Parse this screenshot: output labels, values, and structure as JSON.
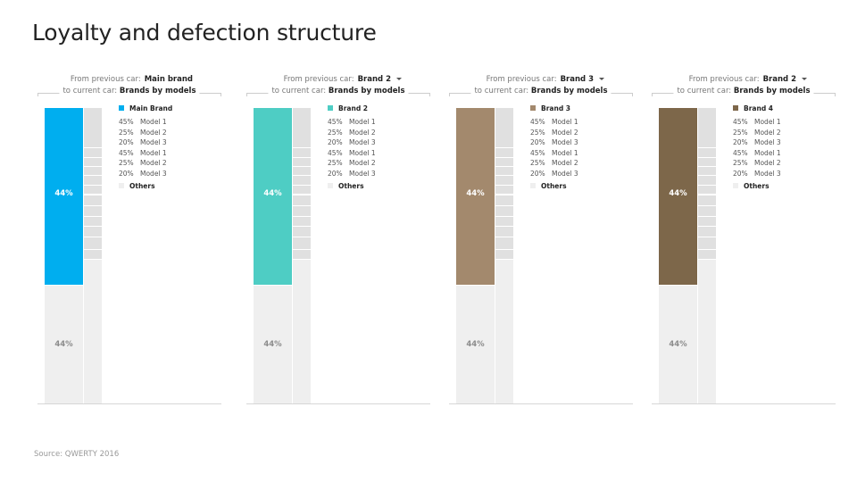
{
  "page": {
    "title": "Loyalty and defection structure",
    "source": "Source: QWERTY 2016"
  },
  "chart_data": [
    {
      "type": "bar",
      "header": {
        "from_label": "From previous car:",
        "from_value": "Main brand",
        "has_dropdown": false,
        "to_label": "to current car:",
        "to_value": "Brands by models"
      },
      "color": "#00aeef",
      "stack": [
        {
          "name": "Main Brand",
          "value": 44,
          "label": "44%"
        },
        {
          "name": "Others",
          "value": 44,
          "label": "44%"
        }
      ],
      "legend": {
        "brand": "Main Brand",
        "rows": [
          {
            "pct": "45%",
            "model": "Model 1"
          },
          {
            "pct": "25%",
            "model": "Model 2"
          },
          {
            "pct": "20%",
            "model": "Model 3"
          },
          {
            "pct": "45%",
            "model": "Model 1"
          },
          {
            "pct": "25%",
            "model": "Model 2"
          },
          {
            "pct": "20%",
            "model": "Model 3"
          }
        ],
        "others": "Others"
      }
    },
    {
      "type": "bar",
      "header": {
        "from_label": "From previous car:",
        "from_value": "Brand 2",
        "has_dropdown": true,
        "to_label": "to current car:",
        "to_value": "Brands by models"
      },
      "color": "#4ecdc4",
      "stack": [
        {
          "name": "Brand 2",
          "value": 44,
          "label": "44%"
        },
        {
          "name": "Others",
          "value": 44,
          "label": "44%"
        }
      ],
      "legend": {
        "brand": "Brand 2",
        "rows": [
          {
            "pct": "45%",
            "model": "Model 1"
          },
          {
            "pct": "25%",
            "model": "Model 2"
          },
          {
            "pct": "20%",
            "model": "Model 3"
          },
          {
            "pct": "45%",
            "model": "Model 1"
          },
          {
            "pct": "25%",
            "model": "Model 2"
          },
          {
            "pct": "20%",
            "model": "Model 3"
          }
        ],
        "others": "Others"
      }
    },
    {
      "type": "bar",
      "header": {
        "from_label": "From previous car:",
        "from_value": "Brand 3",
        "has_dropdown": true,
        "to_label": "to current car:",
        "to_value": "Brands by models"
      },
      "color": "#a3896d",
      "stack": [
        {
          "name": "Brand 3",
          "value": 44,
          "label": "44%"
        },
        {
          "name": "Others",
          "value": 44,
          "label": "44%"
        }
      ],
      "legend": {
        "brand": "Brand 3",
        "rows": [
          {
            "pct": "45%",
            "model": "Model 1"
          },
          {
            "pct": "25%",
            "model": "Model 2"
          },
          {
            "pct": "20%",
            "model": "Model 3"
          },
          {
            "pct": "45%",
            "model": "Model 1"
          },
          {
            "pct": "25%",
            "model": "Model 2"
          },
          {
            "pct": "20%",
            "model": "Model 3"
          }
        ],
        "others": "Others"
      }
    },
    {
      "type": "bar",
      "header": {
        "from_label": "From previous car:",
        "from_value": "Brand 2",
        "has_dropdown": true,
        "to_label": "to current car:",
        "to_value": "Brands by models"
      },
      "color": "#7d674a",
      "stack": [
        {
          "name": "Brand 4",
          "value": 44,
          "label": "44%"
        },
        {
          "name": "Others",
          "value": 44,
          "label": "44%"
        }
      ],
      "legend": {
        "brand": "Brand 4",
        "rows": [
          {
            "pct": "45%",
            "model": "Model 1"
          },
          {
            "pct": "25%",
            "model": "Model 2"
          },
          {
            "pct": "20%",
            "model": "Model 3"
          },
          {
            "pct": "45%",
            "model": "Model 1"
          },
          {
            "pct": "25%",
            "model": "Model 2"
          },
          {
            "pct": "20%",
            "model": "Model 3"
          }
        ],
        "others": "Others"
      }
    }
  ]
}
